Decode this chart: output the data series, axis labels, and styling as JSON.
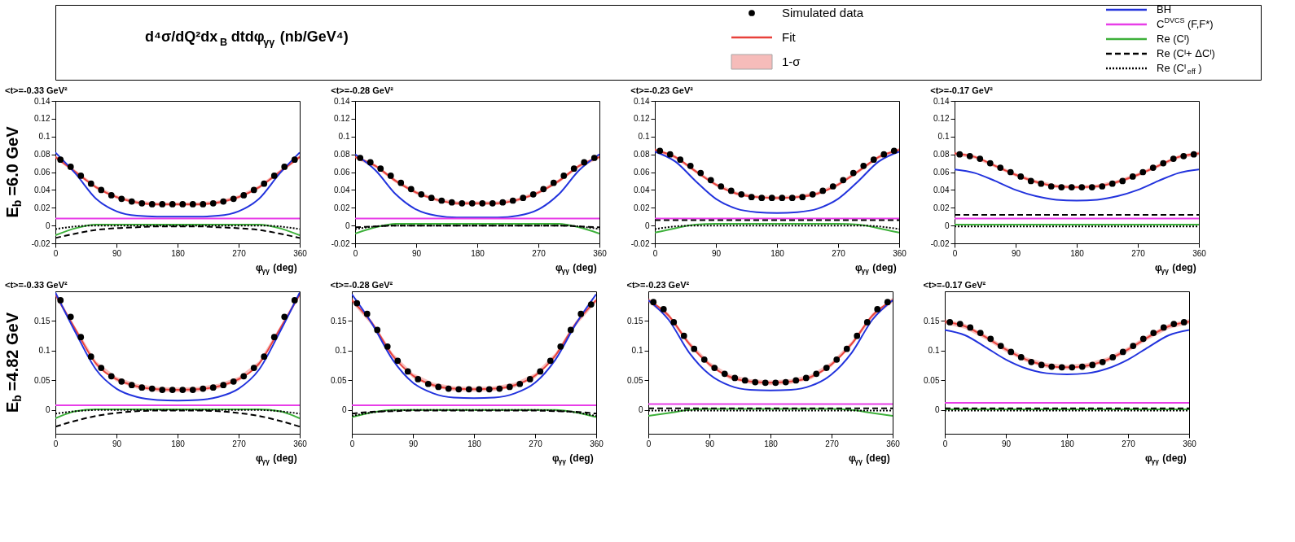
{
  "chart_data": [
    {
      "type": "line",
      "title": "<t>=-0.33 GeV²",
      "xlabel": "φ$_{γγ}$ (deg)",
      "ylabel": "E$_{b}$=6.0 GeV",
      "annotations": [
        "d⁴σ/dQ²dx$_{B}$dtdφ$_{γγ}$ (nb/GeV⁴)",
        "1-σ"
      ],
      "legend": "top",
      "xlim": [
        0,
        360
      ],
      "xticks": [
        0,
        90,
        180,
        270,
        360
      ],
      "ylim": [
        -0.02,
        0.14
      ],
      "yticks": [
        -0.02,
        0,
        0.02,
        0.04,
        0.06,
        0.08,
        0.1,
        0.12,
        0.14
      ],
      "grid": false,
      "x": [
        0,
        30,
        60,
        90,
        120,
        150,
        180,
        210,
        240,
        270,
        300,
        330,
        360
      ],
      "series": [
        {
          "name": "Simulated data",
          "type": "scatter",
          "marker": "circle",
          "color": "#000000",
          "x": [
            7.5,
            22.5,
            37.5,
            52.5,
            67.5,
            82.5,
            97.5,
            112.5,
            127.5,
            142.5,
            157.5,
            172.5,
            187.5,
            202.5,
            217.5,
            232.5,
            247.5,
            262.5,
            277.5,
            292.5,
            307.5,
            322.5,
            337.5,
            352.5
          ],
          "values": [
            0.074,
            0.066,
            0.056,
            0.047,
            0.04,
            0.034,
            0.03,
            0.027,
            0.025,
            0.024,
            0.024,
            0.024,
            0.024,
            0.024,
            0.024,
            0.025,
            0.027,
            0.03,
            0.034,
            0.04,
            0.047,
            0.056,
            0.066,
            0.074
          ]
        },
        {
          "name": "Fit",
          "type": "line",
          "color": "#e8413b",
          "line_style": "solid",
          "values": [
            0.077,
            0.06,
            0.043,
            0.032,
            0.026,
            0.024,
            0.024,
            0.024,
            0.026,
            0.032,
            0.043,
            0.06,
            0.077
          ],
          "lower": [
            0.075,
            0.058,
            0.041,
            0.03,
            0.024,
            0.022,
            0.022,
            0.022,
            0.024,
            0.03,
            0.041,
            0.058,
            0.075
          ],
          "upper": [
            0.079,
            0.062,
            0.045,
            0.034,
            0.028,
            0.026,
            0.026,
            0.026,
            0.028,
            0.034,
            0.045,
            0.062,
            0.079
          ]
        },
        {
          "name": "BH",
          "type": "line",
          "color": "#2233dd",
          "line_style": "solid",
          "values": [
            0.082,
            0.058,
            0.03,
            0.016,
            0.011,
            0.01,
            0.01,
            0.01,
            0.011,
            0.016,
            0.03,
            0.058,
            0.082
          ]
        },
        {
          "name": "C$^{DVCS}$(F,F*)",
          "type": "line",
          "color": "#e83ee8",
          "line_style": "solid",
          "values": [
            0.008,
            0.008,
            0.008,
            0.008,
            0.008,
            0.008,
            0.008,
            0.008,
            0.008,
            0.008,
            0.008,
            0.008,
            0.008
          ]
        },
        {
          "name": "Re (Cᴵ)",
          "type": "line",
          "color": "#3db03a",
          "line_style": "solid",
          "values": [
            -0.011,
            -0.003,
            0.001,
            0.001,
            0.001,
            0.001,
            0.001,
            0.001,
            0.001,
            0.001,
            0.001,
            -0.003,
            -0.011
          ]
        },
        {
          "name": "Re (Cᴵ+ ΔCᴵ)",
          "type": "line",
          "color": "#000000",
          "line_style": "dashed",
          "values": [
            -0.014,
            -0.009,
            -0.005,
            -0.003,
            -0.002,
            -0.001,
            -0.001,
            -0.001,
            -0.002,
            -0.003,
            -0.005,
            -0.009,
            -0.014
          ]
        },
        {
          "name": "Re (Cᴵ$_{eff}$)",
          "type": "line",
          "color": "#000000",
          "line_style": "dotted",
          "values": [
            -0.004,
            -0.001,
            0,
            0,
            0,
            0,
            0,
            0,
            0,
            0,
            0,
            -0.001,
            -0.004
          ]
        }
      ]
    },
    {
      "type": "line",
      "title": "<t>=-0.28 GeV²",
      "xlabel": "φ$_{γγ}$ (deg)",
      "xlim": [
        0,
        360
      ],
      "xticks": [
        0,
        90,
        180,
        270,
        360
      ],
      "ylim": [
        -0.02,
        0.14
      ],
      "yticks": [
        -0.02,
        0,
        0.02,
        0.04,
        0.06,
        0.08,
        0.1,
        0.12,
        0.14
      ],
      "grid": false,
      "x": [
        0,
        30,
        60,
        90,
        120,
        150,
        180,
        210,
        240,
        270,
        300,
        330,
        360
      ],
      "series": [
        {
          "type": "scatter",
          "marker": "circle",
          "color": "#000000",
          "x": [
            7.5,
            22.5,
            37.5,
            52.5,
            67.5,
            82.5,
            97.5,
            112.5,
            127.5,
            142.5,
            157.5,
            172.5,
            187.5,
            202.5,
            217.5,
            232.5,
            247.5,
            262.5,
            277.5,
            292.5,
            307.5,
            322.5,
            337.5,
            352.5
          ],
          "values": [
            0.076,
            0.071,
            0.064,
            0.056,
            0.048,
            0.041,
            0.035,
            0.031,
            0.028,
            0.026,
            0.025,
            0.025,
            0.025,
            0.025,
            0.026,
            0.028,
            0.031,
            0.035,
            0.041,
            0.048,
            0.056,
            0.064,
            0.071,
            0.076
          ]
        },
        {
          "type": "line",
          "color": "#e8413b",
          "line_style": "solid",
          "values": [
            0.077,
            0.067,
            0.05,
            0.037,
            0.029,
            0.025,
            0.025,
            0.025,
            0.029,
            0.037,
            0.05,
            0.067,
            0.077
          ],
          "lower": [
            0.075,
            0.065,
            0.048,
            0.035,
            0.027,
            0.023,
            0.023,
            0.023,
            0.027,
            0.035,
            0.048,
            0.065,
            0.075
          ],
          "upper": [
            0.079,
            0.069,
            0.052,
            0.039,
            0.031,
            0.027,
            0.027,
            0.027,
            0.031,
            0.039,
            0.052,
            0.069,
            0.079
          ]
        },
        {
          "type": "line",
          "color": "#2233dd",
          "line_style": "solid",
          "values": [
            0.08,
            0.062,
            0.035,
            0.018,
            0.011,
            0.009,
            0.009,
            0.009,
            0.011,
            0.018,
            0.035,
            0.062,
            0.08
          ]
        },
        {
          "type": "line",
          "color": "#e83ee8",
          "line_style": "solid",
          "values": [
            0.008,
            0.008,
            0.008,
            0.008,
            0.008,
            0.008,
            0.008,
            0.008,
            0.008,
            0.008,
            0.008,
            0.008,
            0.008
          ]
        },
        {
          "type": "line",
          "color": "#3db03a",
          "line_style": "solid",
          "values": [
            -0.009,
            -0.002,
            0.002,
            0.002,
            0.002,
            0.002,
            0.002,
            0.002,
            0.002,
            0.002,
            0.002,
            -0.002,
            -0.009
          ]
        },
        {
          "type": "line",
          "color": "#000000",
          "line_style": "dashed",
          "values": [
            -0.002,
            -0.001,
            0,
            0,
            0,
            0,
            0,
            0,
            0,
            0,
            0,
            -0.001,
            -0.002
          ]
        },
        {
          "type": "line",
          "color": "#000000",
          "line_style": "dotted",
          "values": [
            -0.004,
            -0.001,
            0,
            0,
            0,
            0,
            0,
            0,
            0,
            0,
            0,
            -0.001,
            -0.004
          ]
        }
      ]
    },
    {
      "type": "line",
      "title": "<t>=-0.23 GeV²",
      "xlabel": "φ$_{γγ}$ (deg)",
      "xlim": [
        0,
        360
      ],
      "xticks": [
        0,
        90,
        180,
        270,
        360
      ],
      "ylim": [
        -0.02,
        0.14
      ],
      "yticks": [
        -0.02,
        0,
        0.02,
        0.04,
        0.06,
        0.08,
        0.1,
        0.12,
        0.14
      ],
      "grid": false,
      "x": [
        0,
        30,
        60,
        90,
        120,
        150,
        180,
        210,
        240,
        270,
        300,
        330,
        360
      ],
      "series": [
        {
          "type": "scatter",
          "marker": "circle",
          "color": "#000000",
          "x": [
            7.5,
            22.5,
            37.5,
            52.5,
            67.5,
            82.5,
            97.5,
            112.5,
            127.5,
            142.5,
            157.5,
            172.5,
            187.5,
            202.5,
            217.5,
            232.5,
            247.5,
            262.5,
            277.5,
            292.5,
            307.5,
            322.5,
            337.5,
            352.5
          ],
          "values": [
            0.084,
            0.08,
            0.074,
            0.067,
            0.059,
            0.051,
            0.044,
            0.039,
            0.035,
            0.032,
            0.031,
            0.031,
            0.031,
            0.031,
            0.032,
            0.035,
            0.039,
            0.044,
            0.051,
            0.059,
            0.067,
            0.074,
            0.08,
            0.084
          ]
        },
        {
          "type": "line",
          "color": "#e8413b",
          "line_style": "solid",
          "values": [
            0.085,
            0.077,
            0.061,
            0.046,
            0.036,
            0.032,
            0.031,
            0.032,
            0.036,
            0.046,
            0.061,
            0.077,
            0.085
          ],
          "lower": [
            0.083,
            0.075,
            0.059,
            0.044,
            0.034,
            0.03,
            0.029,
            0.03,
            0.034,
            0.044,
            0.059,
            0.075,
            0.083
          ],
          "upper": [
            0.087,
            0.079,
            0.063,
            0.048,
            0.038,
            0.034,
            0.033,
            0.034,
            0.038,
            0.048,
            0.063,
            0.079,
            0.087
          ]
        },
        {
          "type": "line",
          "color": "#2233dd",
          "line_style": "solid",
          "values": [
            0.083,
            0.072,
            0.05,
            0.03,
            0.019,
            0.015,
            0.014,
            0.015,
            0.019,
            0.03,
            0.05,
            0.072,
            0.083
          ]
        },
        {
          "type": "line",
          "color": "#e83ee8",
          "line_style": "solid",
          "values": [
            0.008,
            0.008,
            0.008,
            0.008,
            0.008,
            0.008,
            0.008,
            0.008,
            0.008,
            0.008,
            0.008,
            0.008,
            0.008
          ]
        },
        {
          "type": "line",
          "color": "#3db03a",
          "line_style": "solid",
          "values": [
            -0.008,
            -0.003,
            0.001,
            0.002,
            0.002,
            0.002,
            0.002,
            0.002,
            0.002,
            0.002,
            0.001,
            -0.003,
            -0.008
          ]
        },
        {
          "type": "line",
          "color": "#000000",
          "line_style": "dashed",
          "values": [
            0.006,
            0.006,
            0.006,
            0.006,
            0.006,
            0.006,
            0.006,
            0.006,
            0.006,
            0.006,
            0.006,
            0.006,
            0.006
          ]
        },
        {
          "type": "line",
          "color": "#000000",
          "line_style": "dotted",
          "values": [
            -0.004,
            -0.001,
            0,
            0,
            0,
            0,
            0,
            0,
            0,
            0,
            0,
            -0.001,
            -0.004
          ]
        }
      ]
    },
    {
      "type": "line",
      "title": "<t>=-0.17 GeV²",
      "xlabel": "φ$_{γγ}$ (deg)",
      "xlim": [
        0,
        360
      ],
      "xticks": [
        0,
        90,
        180,
        270,
        360
      ],
      "ylim": [
        -0.02,
        0.14
      ],
      "yticks": [
        -0.02,
        0,
        0.02,
        0.04,
        0.06,
        0.08,
        0.1,
        0.12,
        0.14
      ],
      "grid": false,
      "x": [
        0,
        30,
        60,
        90,
        120,
        150,
        180,
        210,
        240,
        270,
        300,
        330,
        360
      ],
      "series": [
        {
          "type": "scatter",
          "marker": "circle",
          "color": "#000000",
          "x": [
            7.5,
            22.5,
            37.5,
            52.5,
            67.5,
            82.5,
            97.5,
            112.5,
            127.5,
            142.5,
            157.5,
            172.5,
            187.5,
            202.5,
            217.5,
            232.5,
            247.5,
            262.5,
            277.5,
            292.5,
            307.5,
            322.5,
            337.5,
            352.5
          ],
          "values": [
            0.08,
            0.078,
            0.075,
            0.07,
            0.065,
            0.06,
            0.055,
            0.05,
            0.047,
            0.044,
            0.043,
            0.043,
            0.043,
            0.043,
            0.044,
            0.047,
            0.05,
            0.055,
            0.06,
            0.065,
            0.07,
            0.075,
            0.078,
            0.08
          ]
        },
        {
          "type": "line",
          "color": "#e8413b",
          "line_style": "solid",
          "values": [
            0.081,
            0.077,
            0.067,
            0.057,
            0.049,
            0.044,
            0.043,
            0.044,
            0.049,
            0.057,
            0.067,
            0.077,
            0.081
          ],
          "lower": [
            0.079,
            0.075,
            0.065,
            0.055,
            0.047,
            0.042,
            0.041,
            0.042,
            0.047,
            0.055,
            0.065,
            0.075,
            0.079
          ],
          "upper": [
            0.083,
            0.079,
            0.069,
            0.059,
            0.051,
            0.046,
            0.045,
            0.046,
            0.051,
            0.059,
            0.069,
            0.079,
            0.083
          ]
        },
        {
          "type": "line",
          "color": "#2233dd",
          "line_style": "solid",
          "values": [
            0.063,
            0.059,
            0.05,
            0.04,
            0.033,
            0.029,
            0.028,
            0.029,
            0.033,
            0.04,
            0.05,
            0.059,
            0.063
          ]
        },
        {
          "type": "line",
          "color": "#e83ee8",
          "line_style": "solid",
          "values": [
            0.008,
            0.008,
            0.008,
            0.008,
            0.008,
            0.008,
            0.008,
            0.008,
            0.008,
            0.008,
            0.008,
            0.008,
            0.008
          ]
        },
        {
          "type": "line",
          "color": "#3db03a",
          "line_style": "solid",
          "values": [
            0.001,
            0.001,
            0.001,
            0.001,
            0.001,
            0.001,
            0.001,
            0.001,
            0.001,
            0.001,
            0.001,
            0.001,
            0.001
          ]
        },
        {
          "type": "line",
          "color": "#000000",
          "line_style": "dashed",
          "values": [
            0.012,
            0.012,
            0.012,
            0.012,
            0.012,
            0.012,
            0.012,
            0.012,
            0.012,
            0.012,
            0.012,
            0.012,
            0.012
          ]
        },
        {
          "type": "line",
          "color": "#000000",
          "line_style": "dotted",
          "values": [
            -0.001,
            -0.001,
            -0.001,
            -0.001,
            -0.001,
            -0.001,
            -0.001,
            -0.001,
            -0.001,
            -0.001,
            -0.001,
            -0.001,
            -0.001
          ]
        }
      ]
    },
    {
      "type": "line",
      "title": "<t>=-0.33 GeV²",
      "xlabel": "φ$_{γγ}$ (deg)",
      "ylabel": "E$_{b}$=4.82 GeV",
      "xlim": [
        0,
        360
      ],
      "xticks": [
        0,
        90,
        180,
        270,
        360
      ],
      "ylim": [
        -0.04,
        0.2
      ],
      "yticks": [
        0,
        0.05,
        0.1,
        0.15
      ],
      "grid": false,
      "x": [
        0,
        30,
        60,
        90,
        120,
        150,
        180,
        210,
        240,
        270,
        300,
        330,
        360
      ],
      "series": [
        {
          "type": "scatter",
          "marker": "circle",
          "color": "#000000",
          "x": [
            7.5,
            22.5,
            37.5,
            52.5,
            67.5,
            82.5,
            97.5,
            112.5,
            127.5,
            142.5,
            157.5,
            172.5,
            187.5,
            202.5,
            217.5,
            232.5,
            247.5,
            262.5,
            277.5,
            292.5,
            307.5,
            322.5,
            337.5,
            352.5
          ],
          "values": [
            0.185,
            0.157,
            0.123,
            0.09,
            0.071,
            0.057,
            0.048,
            0.042,
            0.038,
            0.036,
            0.034,
            0.034,
            0.034,
            0.034,
            0.036,
            0.038,
            0.042,
            0.048,
            0.057,
            0.071,
            0.09,
            0.123,
            0.157,
            0.185
          ]
        },
        {
          "type": "line",
          "color": "#e8413b",
          "line_style": "solid",
          "values": [
            0.195,
            0.135,
            0.078,
            0.052,
            0.04,
            0.035,
            0.034,
            0.035,
            0.04,
            0.052,
            0.078,
            0.135,
            0.195
          ],
          "lower": [
            0.191,
            0.131,
            0.074,
            0.048,
            0.036,
            0.031,
            0.03,
            0.031,
            0.036,
            0.048,
            0.074,
            0.131,
            0.191
          ],
          "upper": [
            0.199,
            0.139,
            0.082,
            0.056,
            0.044,
            0.039,
            0.038,
            0.039,
            0.044,
            0.056,
            0.082,
            0.139,
            0.199
          ]
        },
        {
          "type": "line",
          "color": "#2233dd",
          "line_style": "solid",
          "values": [
            0.198,
            0.13,
            0.068,
            0.036,
            0.022,
            0.017,
            0.016,
            0.017,
            0.022,
            0.036,
            0.068,
            0.13,
            0.198
          ]
        },
        {
          "type": "line",
          "color": "#e83ee8",
          "line_style": "solid",
          "values": [
            0.008,
            0.008,
            0.008,
            0.008,
            0.008,
            0.008,
            0.008,
            0.008,
            0.008,
            0.008,
            0.008,
            0.008,
            0.008
          ]
        },
        {
          "type": "line",
          "color": "#3db03a",
          "line_style": "solid",
          "values": [
            -0.014,
            -0.002,
            0.001,
            0.001,
            0.001,
            0.001,
            0.001,
            0.001,
            0.001,
            0.001,
            0.001,
            -0.002,
            -0.014
          ]
        },
        {
          "type": "line",
          "color": "#000000",
          "line_style": "dashed",
          "values": [
            -0.028,
            -0.018,
            -0.01,
            -0.005,
            -0.002,
            -0.001,
            -0.001,
            -0.001,
            -0.002,
            -0.005,
            -0.01,
            -0.018,
            -0.028
          ]
        },
        {
          "type": "line",
          "color": "#000000",
          "line_style": "dotted",
          "values": [
            -0.006,
            -0.002,
            0,
            0,
            0,
            0,
            0,
            0,
            0,
            0,
            0,
            -0.002,
            -0.006
          ]
        }
      ]
    },
    {
      "type": "line",
      "title": "<t>=-0.28 GeV²",
      "xlabel": "φ$_{γγ}$ (deg)",
      "xlim": [
        0,
        360
      ],
      "xticks": [
        0,
        90,
        180,
        270,
        360
      ],
      "ylim": [
        -0.04,
        0.2
      ],
      "yticks": [
        0,
        0.05,
        0.1,
        0.15
      ],
      "grid": false,
      "x": [
        0,
        30,
        60,
        90,
        120,
        150,
        180,
        210,
        240,
        270,
        300,
        330,
        360
      ],
      "series": [
        {
          "type": "scatter",
          "marker": "circle",
          "color": "#000000",
          "x": [
            7.5,
            22.5,
            37.5,
            52.5,
            67.5,
            82.5,
            97.5,
            112.5,
            127.5,
            142.5,
            157.5,
            172.5,
            187.5,
            202.5,
            217.5,
            232.5,
            247.5,
            262.5,
            277.5,
            292.5,
            307.5,
            322.5,
            337.5,
            352.5
          ],
          "values": [
            0.18,
            0.162,
            0.135,
            0.107,
            0.083,
            0.065,
            0.052,
            0.044,
            0.039,
            0.036,
            0.035,
            0.035,
            0.035,
            0.035,
            0.036,
            0.039,
            0.044,
            0.052,
            0.065,
            0.083,
            0.107,
            0.135,
            0.162,
            0.178
          ]
        },
        {
          "type": "line",
          "color": "#e8413b",
          "line_style": "solid",
          "values": [
            0.185,
            0.146,
            0.092,
            0.058,
            0.042,
            0.036,
            0.035,
            0.036,
            0.042,
            0.058,
            0.092,
            0.146,
            0.185
          ],
          "lower": [
            0.181,
            0.142,
            0.088,
            0.054,
            0.038,
            0.032,
            0.031,
            0.032,
            0.038,
            0.054,
            0.088,
            0.142,
            0.181
          ],
          "upper": [
            0.189,
            0.15,
            0.096,
            0.062,
            0.046,
            0.04,
            0.039,
            0.04,
            0.046,
            0.062,
            0.096,
            0.15,
            0.189
          ]
        },
        {
          "type": "line",
          "color": "#2233dd",
          "line_style": "solid",
          "values": [
            0.195,
            0.145,
            0.085,
            0.046,
            0.028,
            0.021,
            0.02,
            0.021,
            0.028,
            0.046,
            0.085,
            0.145,
            0.195
          ]
        },
        {
          "type": "line",
          "color": "#e83ee8",
          "line_style": "solid",
          "values": [
            0.008,
            0.008,
            0.008,
            0.008,
            0.008,
            0.008,
            0.008,
            0.008,
            0.008,
            0.008,
            0.008,
            0.008,
            0.008
          ]
        },
        {
          "type": "line",
          "color": "#3db03a",
          "line_style": "solid",
          "values": [
            -0.012,
            -0.004,
            0,
            0,
            0,
            0,
            0,
            0,
            0,
            0,
            0,
            -0.004,
            -0.012
          ]
        },
        {
          "type": "line",
          "color": "#000000",
          "line_style": "dashed",
          "values": [
            -0.006,
            -0.003,
            -0.002,
            -0.001,
            -0.001,
            -0.001,
            -0.001,
            -0.001,
            -0.001,
            -0.001,
            -0.002,
            -0.003,
            -0.006
          ]
        },
        {
          "type": "line",
          "color": "#000000",
          "line_style": "dotted",
          "values": [
            -0.01,
            -0.004,
            -0.001,
            0,
            0,
            0,
            0,
            0,
            0,
            0,
            -0.001,
            -0.004,
            -0.01
          ]
        }
      ]
    },
    {
      "type": "line",
      "title": "<t>=-0.23 GeV²",
      "xlabel": "φ$_{γγ}$ (deg)",
      "xlim": [
        0,
        360
      ],
      "xticks": [
        0,
        90,
        180,
        270,
        360
      ],
      "ylim": [
        -0.04,
        0.2
      ],
      "yticks": [
        0,
        0.05,
        0.1,
        0.15
      ],
      "grid": false,
      "x": [
        0,
        30,
        60,
        90,
        120,
        150,
        180,
        210,
        240,
        270,
        300,
        330,
        360
      ],
      "series": [
        {
          "type": "scatter",
          "marker": "circle",
          "color": "#000000",
          "x": [
            7.5,
            22.5,
            37.5,
            52.5,
            67.5,
            82.5,
            97.5,
            112.5,
            127.5,
            142.5,
            157.5,
            172.5,
            187.5,
            202.5,
            217.5,
            232.5,
            247.5,
            262.5,
            277.5,
            292.5,
            307.5,
            322.5,
            337.5,
            352.5
          ],
          "values": [
            0.182,
            0.17,
            0.148,
            0.125,
            0.103,
            0.085,
            0.071,
            0.061,
            0.054,
            0.05,
            0.047,
            0.046,
            0.046,
            0.047,
            0.05,
            0.054,
            0.061,
            0.071,
            0.085,
            0.103,
            0.125,
            0.148,
            0.17,
            0.182
          ]
        },
        {
          "type": "line",
          "color": "#e8413b",
          "line_style": "solid",
          "values": [
            0.185,
            0.159,
            0.112,
            0.077,
            0.056,
            0.048,
            0.046,
            0.048,
            0.056,
            0.077,
            0.112,
            0.159,
            0.185
          ],
          "lower": [
            0.181,
            0.155,
            0.108,
            0.073,
            0.052,
            0.044,
            0.042,
            0.044,
            0.052,
            0.073,
            0.108,
            0.155,
            0.181
          ],
          "upper": [
            0.189,
            0.163,
            0.116,
            0.081,
            0.06,
            0.052,
            0.05,
            0.052,
            0.06,
            0.081,
            0.116,
            0.163,
            0.189
          ]
        },
        {
          "type": "line",
          "color": "#2233dd",
          "line_style": "solid",
          "values": [
            0.185,
            0.152,
            0.097,
            0.06,
            0.041,
            0.034,
            0.033,
            0.034,
            0.041,
            0.06,
            0.097,
            0.152,
            0.185
          ]
        },
        {
          "type": "line",
          "color": "#e83ee8",
          "line_style": "solid",
          "values": [
            0.01,
            0.01,
            0.01,
            0.01,
            0.01,
            0.01,
            0.01,
            0.01,
            0.01,
            0.01,
            0.01,
            0.01,
            0.01
          ]
        },
        {
          "type": "line",
          "color": "#3db03a",
          "line_style": "solid",
          "values": [
            -0.01,
            -0.005,
            0,
            0.002,
            0.002,
            0.002,
            0.002,
            0.002,
            0.002,
            0.002,
            0,
            -0.005,
            -0.01
          ]
        },
        {
          "type": "line",
          "color": "#000000",
          "line_style": "dashed",
          "values": [
            0.003,
            0.003,
            0.003,
            0.003,
            0.003,
            0.003,
            0.003,
            0.003,
            0.003,
            0.003,
            0.003,
            0.003,
            0.003
          ]
        },
        {
          "type": "line",
          "color": "#000000",
          "line_style": "dotted",
          "values": [
            -0.001,
            -0.001,
            -0.001,
            -0.001,
            -0.001,
            -0.001,
            -0.001,
            -0.001,
            -0.001,
            -0.001,
            -0.001,
            -0.001,
            -0.001
          ]
        }
      ]
    },
    {
      "type": "line",
      "title": "<t>=-0.17 GeV²",
      "xlabel": "φ$_{γγ}$ (deg)",
      "xlim": [
        0,
        360
      ],
      "xticks": [
        0,
        90,
        180,
        270,
        360
      ],
      "ylim": [
        -0.04,
        0.2
      ],
      "yticks": [
        0,
        0.05,
        0.1,
        0.15
      ],
      "grid": false,
      "x": [
        0,
        30,
        60,
        90,
        120,
        150,
        180,
        210,
        240,
        270,
        300,
        330,
        360
      ],
      "series": [
        {
          "type": "scatter",
          "marker": "circle",
          "color": "#000000",
          "x": [
            7.5,
            22.5,
            37.5,
            52.5,
            67.5,
            82.5,
            97.5,
            112.5,
            127.5,
            142.5,
            157.5,
            172.5,
            187.5,
            202.5,
            217.5,
            232.5,
            247.5,
            262.5,
            277.5,
            292.5,
            307.5,
            322.5,
            337.5,
            352.5
          ],
          "values": [
            0.148,
            0.145,
            0.139,
            0.13,
            0.12,
            0.108,
            0.098,
            0.089,
            0.081,
            0.076,
            0.073,
            0.072,
            0.072,
            0.073,
            0.076,
            0.081,
            0.089,
            0.098,
            0.108,
            0.12,
            0.13,
            0.139,
            0.145,
            0.148
          ]
        },
        {
          "type": "line",
          "color": "#e8413b",
          "line_style": "solid",
          "values": [
            0.149,
            0.141,
            0.123,
            0.102,
            0.085,
            0.075,
            0.072,
            0.075,
            0.085,
            0.102,
            0.123,
            0.141,
            0.149
          ],
          "lower": [
            0.145,
            0.137,
            0.119,
            0.098,
            0.081,
            0.071,
            0.068,
            0.071,
            0.081,
            0.098,
            0.119,
            0.137,
            0.145
          ],
          "upper": [
            0.153,
            0.145,
            0.127,
            0.106,
            0.089,
            0.079,
            0.076,
            0.079,
            0.089,
            0.106,
            0.127,
            0.145,
            0.153
          ]
        },
        {
          "type": "line",
          "color": "#2233dd",
          "line_style": "solid",
          "values": [
            0.135,
            0.126,
            0.106,
            0.085,
            0.07,
            0.062,
            0.06,
            0.062,
            0.07,
            0.085,
            0.106,
            0.126,
            0.135
          ]
        },
        {
          "type": "line",
          "color": "#e83ee8",
          "line_style": "solid",
          "values": [
            0.012,
            0.012,
            0.012,
            0.012,
            0.012,
            0.012,
            0.012,
            0.012,
            0.012,
            0.012,
            0.012,
            0.012,
            0.012
          ]
        },
        {
          "type": "line",
          "color": "#3db03a",
          "line_style": "solid",
          "values": [
            0.001,
            0.001,
            0.001,
            0.001,
            0.001,
            0.001,
            0.001,
            0.001,
            0.001,
            0.001,
            0.001,
            0.001,
            0.001
          ]
        },
        {
          "type": "line",
          "color": "#000000",
          "line_style": "dashed",
          "values": [
            0.003,
            0.003,
            0.003,
            0.003,
            0.003,
            0.003,
            0.003,
            0.003,
            0.003,
            0.003,
            0.003,
            0.003,
            0.003
          ]
        },
        {
          "type": "line",
          "color": "#000000",
          "line_style": "dotted",
          "values": [
            -0.001,
            -0.001,
            -0.001,
            -0.001,
            -0.001,
            -0.001,
            -0.001,
            -0.001,
            -0.001,
            -0.001,
            -0.001,
            -0.001,
            -0.001
          ]
        }
      ]
    }
  ]
}
